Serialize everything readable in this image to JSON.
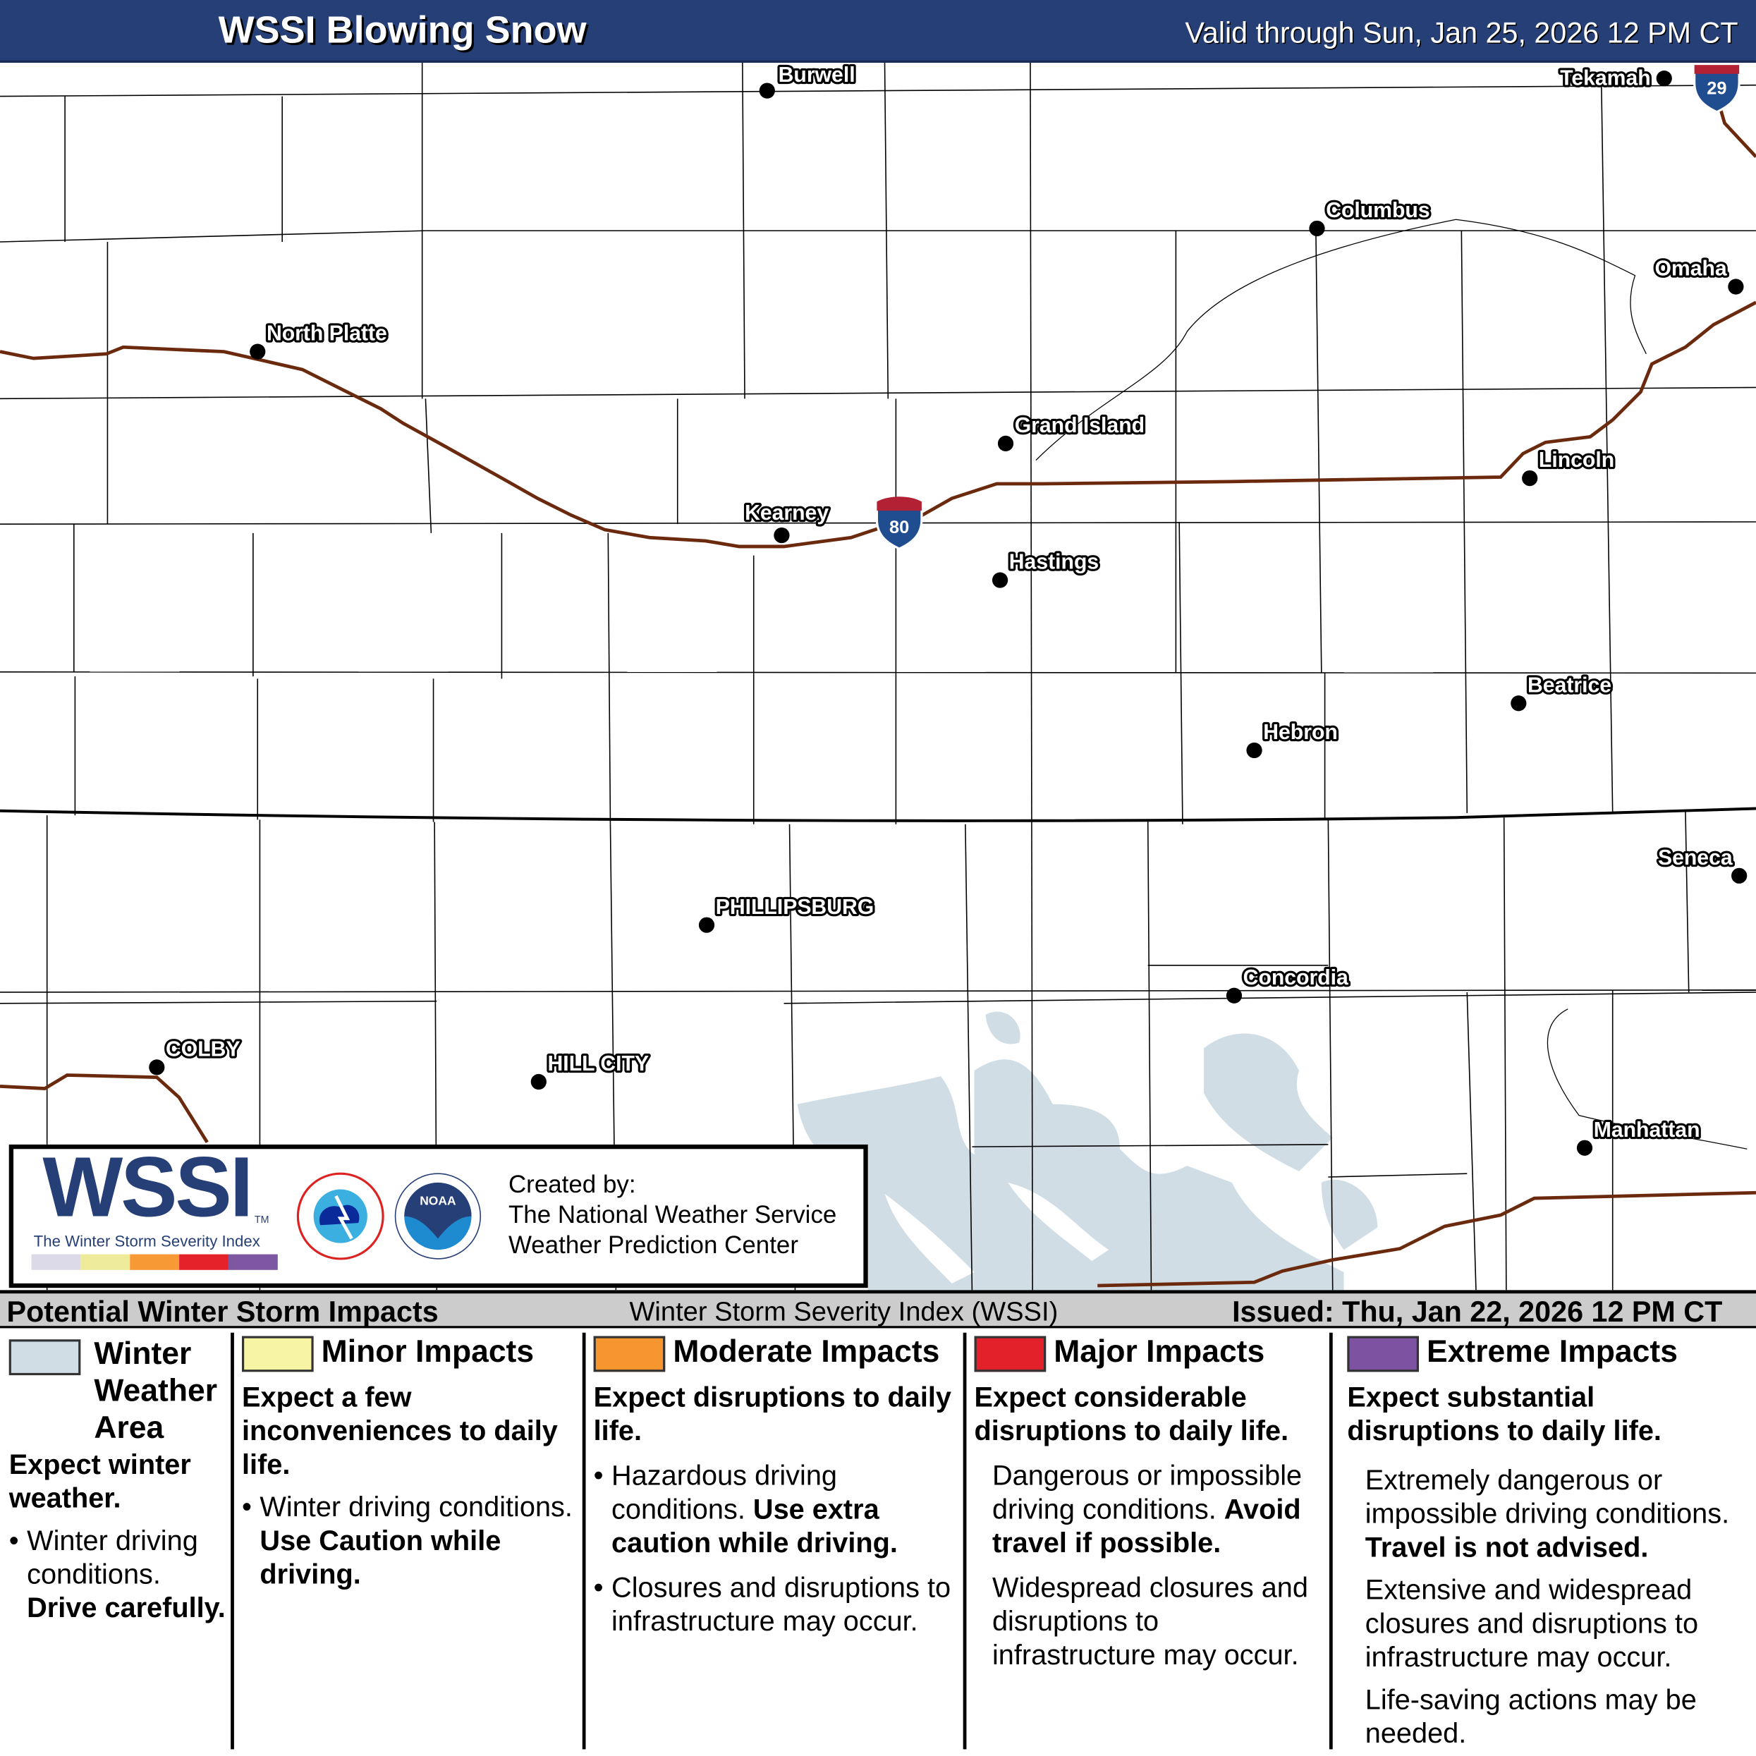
{
  "header": {
    "title": "WSSI Blowing Snow",
    "valid": "Valid through Sun, Jan 25, 2026 12 PM CT"
  },
  "map": {
    "cities": [
      {
        "name": "Burwell"
      },
      {
        "name": "Tekamah"
      },
      {
        "name": "Columbus"
      },
      {
        "name": "Omaha"
      },
      {
        "name": "North Platte"
      },
      {
        "name": "Grand Island"
      },
      {
        "name": "Lincoln"
      },
      {
        "name": "Kearney"
      },
      {
        "name": "Hastings"
      },
      {
        "name": "Beatrice"
      },
      {
        "name": "Hebron"
      },
      {
        "name": "Seneca"
      },
      {
        "name": "PHILLIPSBURG"
      },
      {
        "name": "Concordia"
      },
      {
        "name": "COLBY"
      },
      {
        "name": "HILL CITY"
      },
      {
        "name": "Manhattan"
      }
    ],
    "interstates": [
      "80",
      "29"
    ],
    "colors": {
      "road": "#6b2a0e",
      "winter_weather_area": "#d0dde5",
      "shield_blue": "#1f4d8f",
      "shield_red": "#b22234"
    }
  },
  "logo": {
    "wssi": "WSSI",
    "tm": "TM",
    "subtitle": "The Winter Storm Severity Index",
    "created": [
      "Created by:",
      "The National Weather Service",
      "Weather Prediction Center"
    ],
    "scale_colors": [
      "#dcdae8",
      "#eeeb9a",
      "#f79a35",
      "#e52229",
      "#7e57a2"
    ]
  },
  "legend": {
    "left": "Potential Winter Storm Impacts",
    "center": "Winter Storm Severity Index (WSSI)",
    "issued": "Issued: Thu, Jan 22, 2026 12 PM CT",
    "columns": [
      {
        "title": "Winter Weather Area",
        "color": "#d0dde5",
        "lead": "Expect winter weather.",
        "p1": "Winter driving conditions.",
        "p1b": "Drive carefully."
      },
      {
        "title": "Minor Impacts",
        "color": "#f7f4a3",
        "lead": "Expect a few inconveniences to daily life.",
        "p1": "Winter driving conditions.",
        "p1b": "Use Caution while driving."
      },
      {
        "title": "Moderate Impacts",
        "color": "#f7962f",
        "lead": "Expect disruptions to daily life.",
        "p1": "Hazardous driving conditions.",
        "p1b": "Use extra caution while driving.",
        "p2": "Closures and disruptions to infrastructure may occur."
      },
      {
        "title": "Major Impacts",
        "color": "#e3212a",
        "lead": "Expect considerable disruptions to daily life.",
        "p1": "Dangerous or impossible driving conditions.",
        "p1b": "Avoid travel if possible.",
        "p2": "Widespread closures and disruptions to infrastructure may occur."
      },
      {
        "title": "Extreme Impacts",
        "color": "#7d52a0",
        "lead": "Expect substantial disruptions to daily life.",
        "p1": "Extremely dangerous or impossible driving conditions.",
        "p1b": "Travel is not advised.",
        "p2": "Extensive and widespread closures and disruptions to infrastructure may occur.",
        "p3": "Life-saving actions may be needed."
      }
    ]
  }
}
